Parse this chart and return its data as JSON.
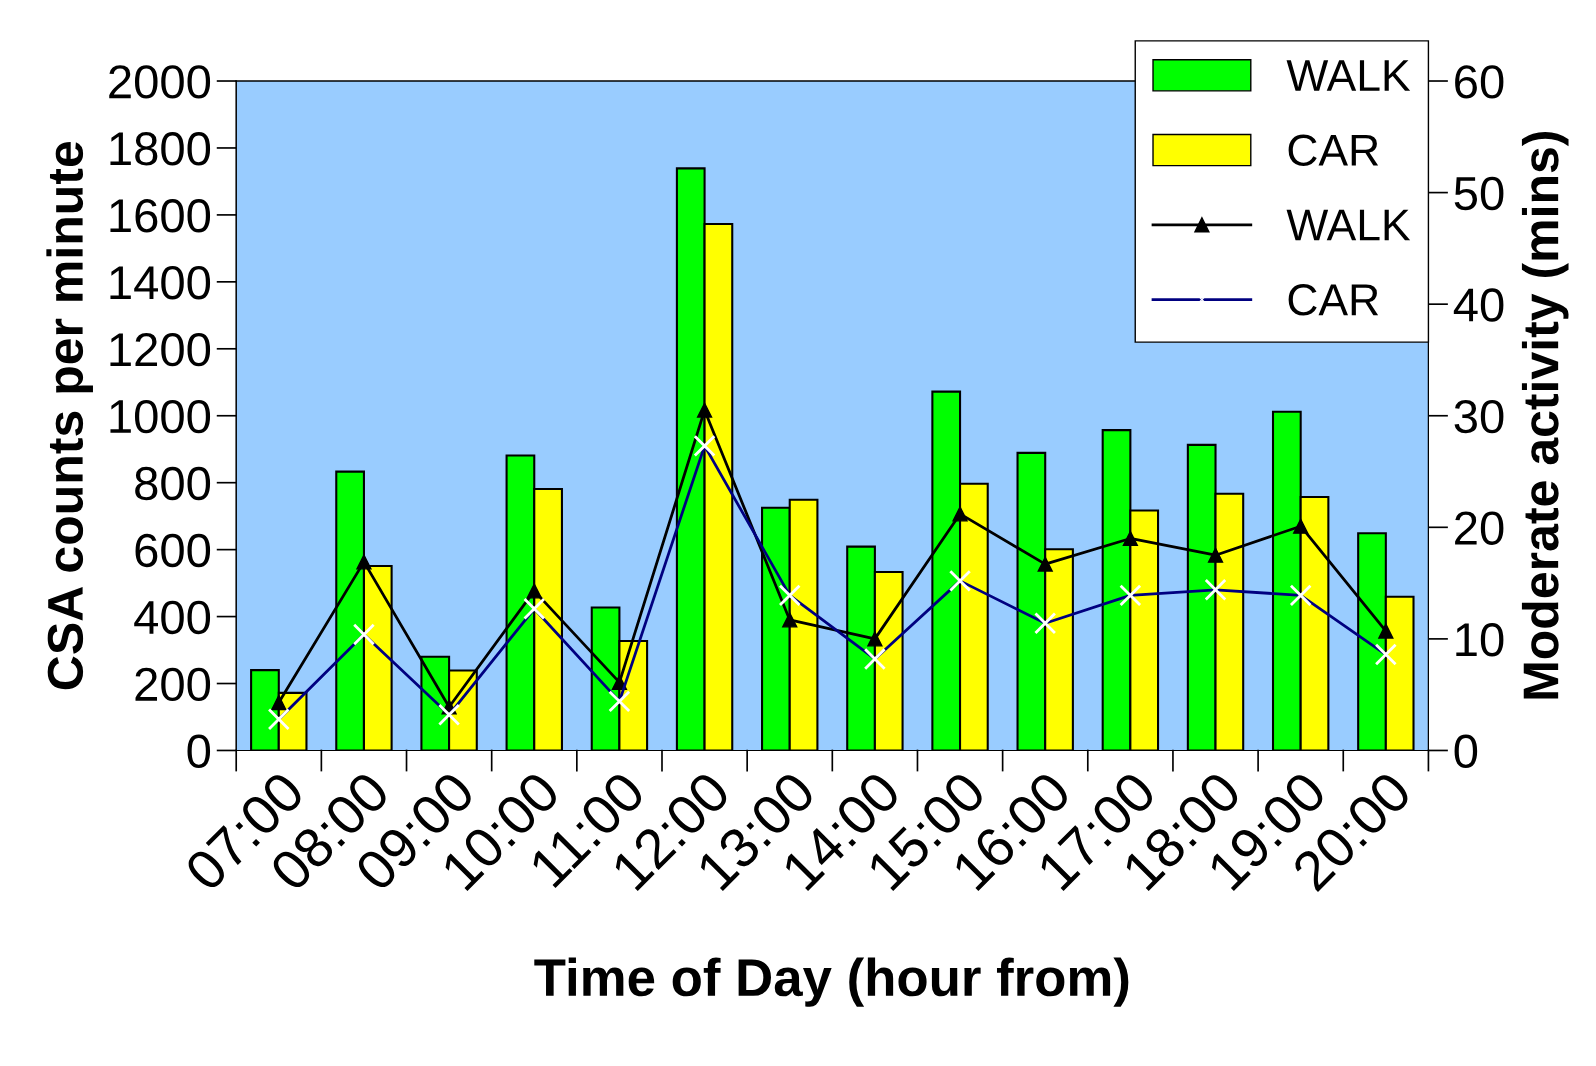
{
  "chart_data": {
    "type": "bar",
    "xlabel": "Time of Day (hour from)",
    "ylabel": "CSA counts per minute",
    "y2label": "Moderate activity (mins)",
    "categories": [
      "07:00",
      "08:00",
      "09:00",
      "10:00",
      "11:00",
      "12:00",
      "13:00",
      "14:00",
      "15:00",
      "16:00",
      "17:00",
      "18:00",
      "19:00",
      "20:00"
    ],
    "series": [
      {
        "name": "WALK",
        "color": "#00ff00",
        "values": [
          240,
          833,
          280,
          881,
          427,
          1739,
          725,
          609,
          1072,
          889,
          957,
          913,
          1012,
          649
        ]
      },
      {
        "name": "CAR",
        "color": "#ffff00",
        "values": [
          172,
          551,
          239,
          781,
          327,
          1573,
          749,
          533,
          797,
          601,
          717,
          767,
          757,
          459
        ]
      },
      {
        "name": "WALK",
        "type": "line",
        "axis": "y2",
        "color": "#000000",
        "marker": "triangle",
        "values": [
          4.3,
          16.9,
          3.9,
          14.3,
          6.1,
          30.5,
          11.7,
          10.0,
          21.2,
          16.7,
          19.0,
          17.5,
          20.1,
          10.7
        ]
      },
      {
        "name": "CAR",
        "type": "line",
        "axis": "y2",
        "color": "#000080",
        "marker": "cross",
        "values": [
          2.8,
          10.4,
          3.2,
          12.7,
          4.4,
          27.3,
          13.9,
          8.2,
          15.2,
          11.4,
          13.9,
          14.4,
          13.9,
          8.6
        ]
      }
    ],
    "ylim": [
      0,
      2000
    ],
    "yticks": [
      0,
      200,
      400,
      600,
      800,
      1000,
      1200,
      1400,
      1600,
      1800,
      2000
    ],
    "y2lim": [
      0,
      60
    ],
    "y2ticks": [
      0,
      10,
      20,
      30,
      40,
      50,
      60
    ],
    "grid": false,
    "legend": "top right"
  }
}
